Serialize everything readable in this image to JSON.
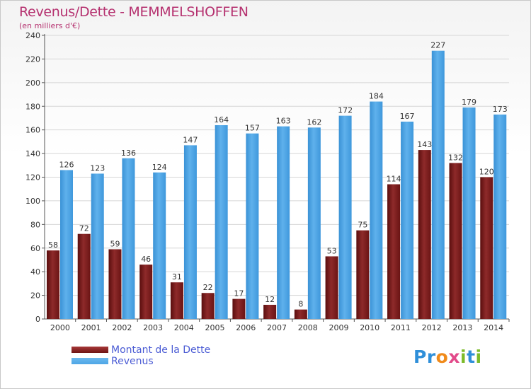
{
  "header": {
    "title": "Revenus/Dette - MEMMELSHOFFEN",
    "subtitle": "(en milliers d'€)"
  },
  "legend": {
    "items": [
      {
        "label": "Montant de la Dette",
        "color": "#6e1414"
      },
      {
        "label": "Revenus",
        "color": "#4ea6e6"
      }
    ]
  },
  "logo": {
    "text": "Proxiti"
  },
  "chart_data": {
    "type": "bar",
    "categories": [
      "2000",
      "2001",
      "2002",
      "2003",
      "2004",
      "2005",
      "2006",
      "2007",
      "2008",
      "2009",
      "2010",
      "2011",
      "2012",
      "2013",
      "2014"
    ],
    "series": [
      {
        "name": "Montant de la Dette",
        "color": "#7a1a1a",
        "values": [
          58,
          72,
          59,
          46,
          31,
          22,
          17,
          12,
          8,
          53,
          75,
          114,
          143,
          132,
          120
        ]
      },
      {
        "name": "Revenus",
        "color": "#4ea6e6",
        "values": [
          126,
          123,
          136,
          124,
          147,
          164,
          157,
          163,
          162,
          172,
          184,
          167,
          227,
          179,
          173
        ]
      }
    ],
    "ylim": [
      0,
      240
    ],
    "yticks": [
      0,
      20,
      40,
      60,
      80,
      100,
      120,
      140,
      160,
      180,
      200,
      220,
      240
    ],
    "grid": true,
    "legend_position": "bottom-left"
  }
}
